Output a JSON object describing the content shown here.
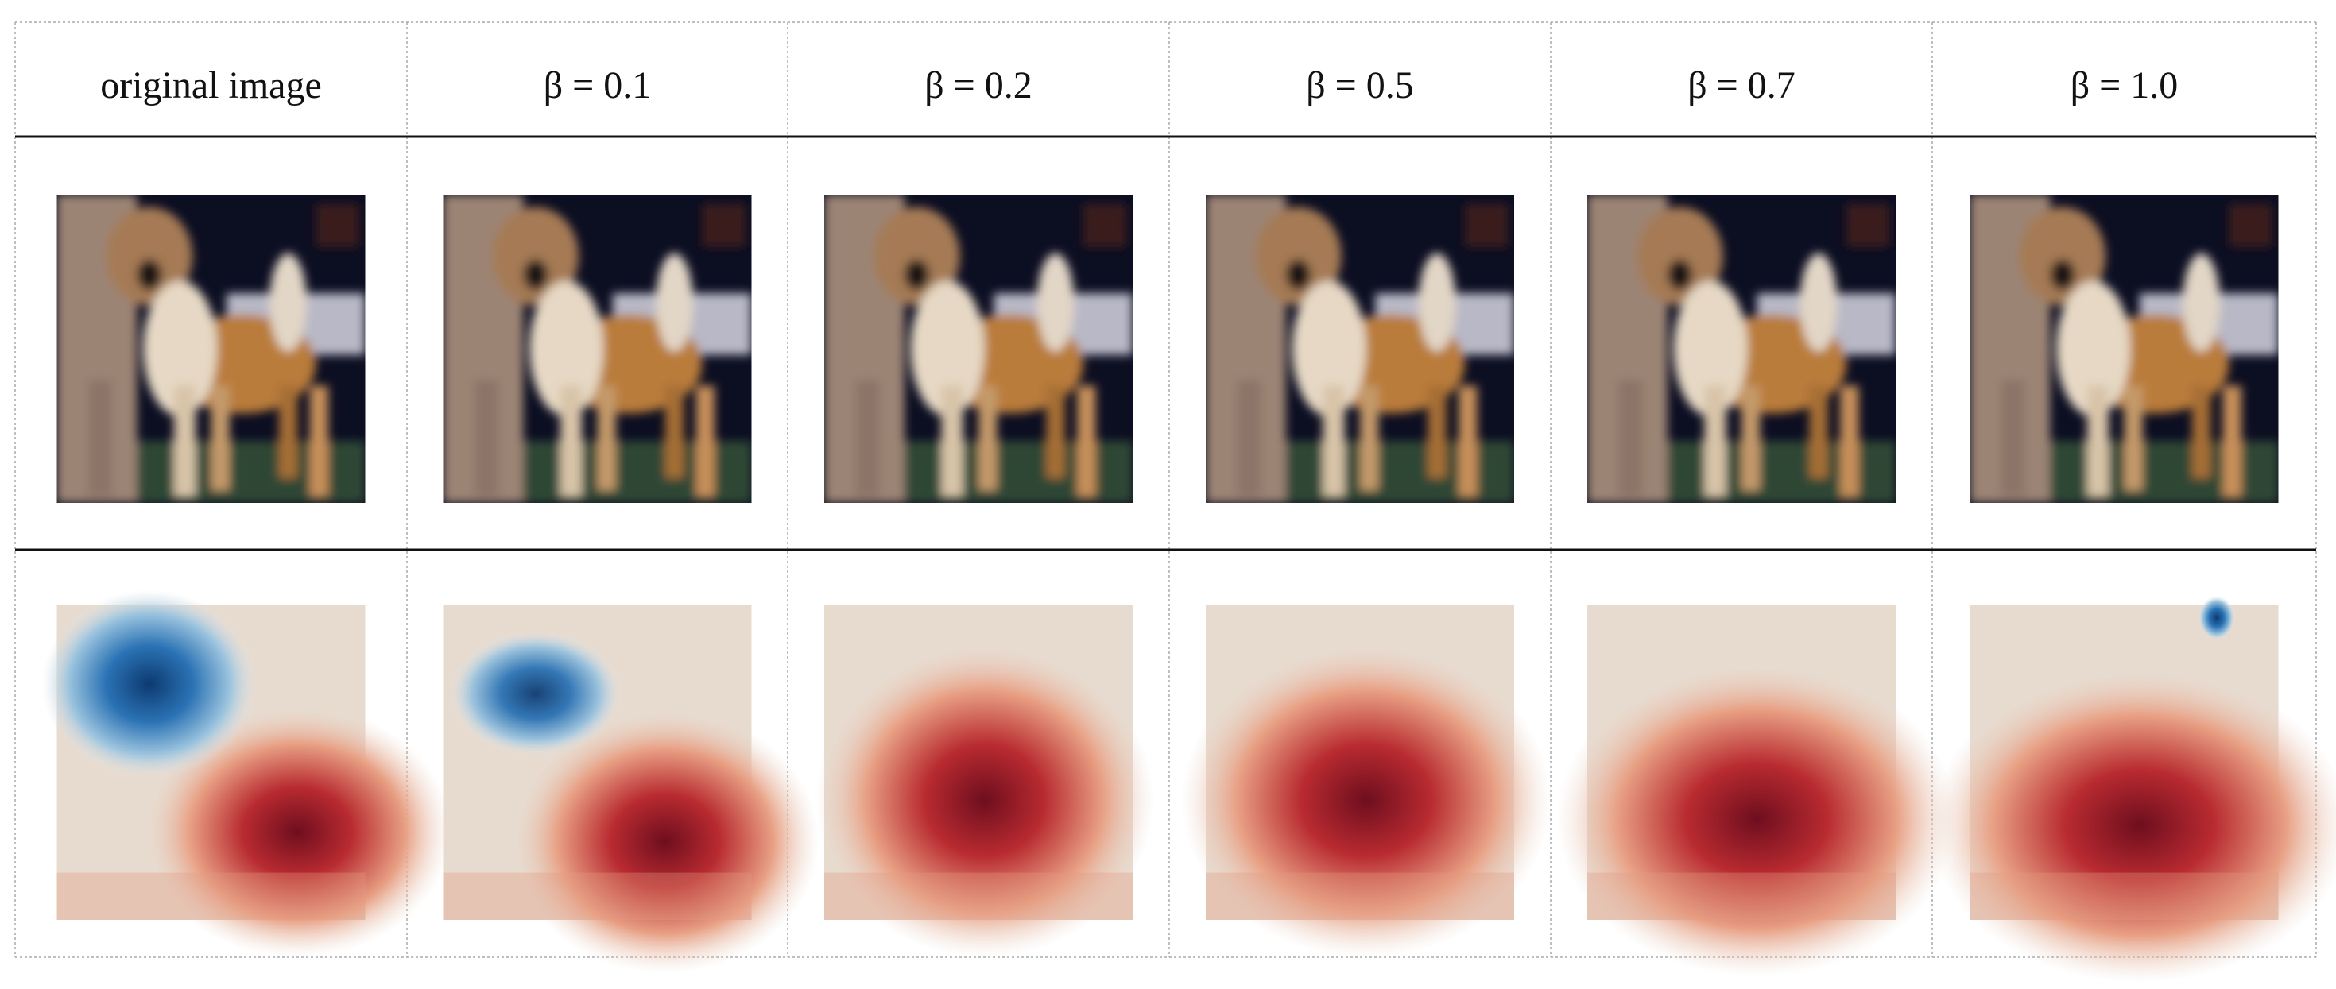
{
  "table": {
    "header": [
      "original image",
      "β = 0.1",
      "β = 0.2",
      "β = 0.5",
      "β = 0.7",
      "β = 1.0"
    ]
  }
}
